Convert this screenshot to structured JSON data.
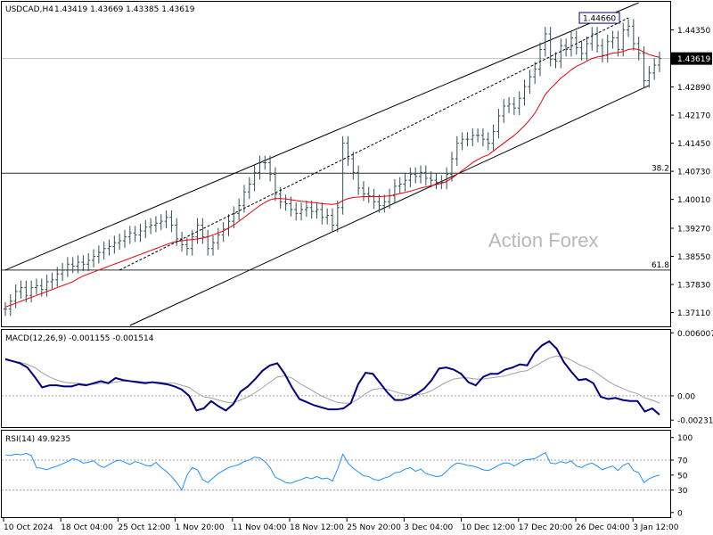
{
  "header": {
    "symbol": "USDCAD,H4",
    "ohlc": "1.43419 1.43669 1.43385 1.43619"
  },
  "watermark": "Action Forex",
  "colors": {
    "price": "#2f4f4f",
    "ma": "#e8000b",
    "macd": "#000080",
    "signal": "#a0a0a0",
    "rsi": "#1e90ff",
    "annotation": "#000080"
  },
  "chart_data": [
    {
      "type": "line",
      "name": "price",
      "ylim": [
        1.3678,
        1.4505
      ],
      "yticks": [
        "1.44350",
        "1.43619",
        "1.42890",
        "1.42170",
        "1.41450",
        "1.40730",
        "1.40010",
        "1.39270",
        "1.38550",
        "1.37830",
        "1.37110"
      ],
      "ytick_values": [
        1.4435,
        1.43619,
        1.4289,
        1.4217,
        1.4145,
        1.4073,
        1.4001,
        1.3927,
        1.3855,
        1.3783,
        1.3711
      ],
      "current_price": 1.43619,
      "current_price_label": "1.43619",
      "high_label": "1.44660",
      "high_value": 1.4466,
      "fib_levels": [
        {
          "label": "38.2",
          "value": 1.4068
        },
        {
          "label": "61.8",
          "value": 1.382
        }
      ],
      "x_labels": [
        "10 Oct 2024",
        "18 Oct 04:00",
        "25 Oct 12:00",
        "1 Nov 20:00",
        "11 Nov 04:00",
        "18 Nov 12:00",
        "25 Nov 20:00",
        "3 Dec 04:00",
        "10 Dec 12:00",
        "17 Dec 20:00",
        "26 Dec 04:00",
        "3 Jan 12:00"
      ],
      "channel": {
        "upper": [
          [
            0,
            1.382
          ],
          [
            122,
            1.4505
          ]
        ],
        "lower": [
          [
            24,
            1.3678
          ],
          [
            124,
            1.4293
          ]
        ]
      },
      "close": [
        1.372,
        1.374,
        1.3765,
        1.3775,
        1.3755,
        1.3775,
        1.378,
        1.377,
        1.379,
        1.3795,
        1.381,
        1.382,
        1.3835,
        1.383,
        1.384,
        1.3835,
        1.3845,
        1.3855,
        1.3865,
        1.3875,
        1.388,
        1.389,
        1.3895,
        1.3905,
        1.3915,
        1.391,
        1.392,
        1.393,
        1.3935,
        1.394,
        1.3945,
        1.3955,
        1.3935,
        1.39,
        1.3885,
        1.3875,
        1.3905,
        1.3935,
        1.3905,
        1.3875,
        1.389,
        1.391,
        1.3925,
        1.3945,
        1.3965,
        1.3985,
        1.402,
        1.404,
        1.407,
        1.4095,
        1.4095,
        1.4065,
        1.4015,
        1.3995,
        1.399,
        1.3975,
        1.3965,
        1.3975,
        1.398,
        1.397,
        1.3975,
        1.3955,
        1.396,
        1.3935,
        1.398,
        1.4145,
        1.4105,
        1.407,
        1.403,
        1.4015,
        1.401,
        1.3995,
        1.3985,
        1.3995,
        1.401,
        1.4035,
        1.404,
        1.405,
        1.4065,
        1.406,
        1.407,
        1.4055,
        1.405,
        1.4045,
        1.4045,
        1.4065,
        1.4105,
        1.4145,
        1.4155,
        1.4155,
        1.4165,
        1.4165,
        1.4155,
        1.4145,
        1.4175,
        1.4215,
        1.424,
        1.4245,
        1.4235,
        1.426,
        1.429,
        1.4315,
        1.4335,
        1.4385,
        1.4425,
        1.436,
        1.4355,
        1.4395,
        1.4385,
        1.4415,
        1.439,
        1.4375,
        1.44,
        1.4425,
        1.4395,
        1.437,
        1.4405,
        1.4415,
        1.4385,
        1.4435,
        1.4445,
        1.44,
        1.4375,
        1.4305,
        1.4325,
        1.4345,
        1.43619
      ],
      "ma": [
        1.3725,
        1.373,
        1.3735,
        1.374,
        1.3745,
        1.375,
        1.3755,
        1.376,
        1.3765,
        1.377,
        1.3775,
        1.378,
        1.3785,
        1.379,
        1.3798,
        1.3805,
        1.381,
        1.3815,
        1.382,
        1.3825,
        1.383,
        1.3835,
        1.384,
        1.3845,
        1.385,
        1.3855,
        1.386,
        1.3865,
        1.387,
        1.3875,
        1.388,
        1.3885,
        1.389,
        1.3893,
        1.3895,
        1.3897,
        1.3898,
        1.39,
        1.3902,
        1.3905,
        1.391,
        1.3915,
        1.392,
        1.3928,
        1.3935,
        1.3945,
        1.3955,
        1.3965,
        1.3975,
        1.3985,
        1.3993,
        1.4,
        1.4003,
        1.4003,
        1.4002,
        1.4,
        1.3998,
        1.3996,
        1.3995,
        1.3993,
        1.3992,
        1.399,
        1.3989,
        1.3988,
        1.399,
        1.3998,
        1.4003,
        1.4006,
        1.4007,
        1.4008,
        1.4008,
        1.4008,
        1.4008,
        1.4009,
        1.401,
        1.4013,
        1.4016,
        1.4019,
        1.4022,
        1.4026,
        1.403,
        1.4033,
        1.4036,
        1.4039,
        1.4042,
        1.4047,
        1.4055,
        1.4065,
        1.4075,
        1.4085,
        1.4095,
        1.4103,
        1.411,
        1.4115,
        1.4125,
        1.4135,
        1.4145,
        1.4155,
        1.4165,
        1.4177,
        1.419,
        1.4205,
        1.4222,
        1.4245,
        1.427,
        1.4285,
        1.4298,
        1.4312,
        1.4322,
        1.4333,
        1.4342,
        1.4348,
        1.4355,
        1.4362,
        1.4366,
        1.4368,
        1.4372,
        1.4376,
        1.4377,
        1.438,
        1.4385,
        1.4387,
        1.4385,
        1.4378,
        1.4372,
        1.4368,
        1.4365
      ]
    },
    {
      "type": "line",
      "name": "MACD",
      "label": "MACD(12,26,9) -0.001155 -0.001514",
      "ylim": [
        -0.0029,
        0.0062
      ],
      "yticks": [
        "0.006007",
        "0.00",
        "-0.002318"
      ],
      "ytick_values": [
        0.006007,
        0.0,
        -0.002318
      ],
      "macd": [
        0.0035,
        0.0033,
        0.0031,
        0.0027,
        0.0018,
        0.0008,
        0.001,
        0.001,
        0.0009,
        0.0009,
        0.0011,
        0.001,
        0.0012,
        0.0014,
        0.0012,
        0.0017,
        0.0015,
        0.0014,
        0.0013,
        0.0012,
        0.0013,
        0.0012,
        0.0011,
        0.0009,
        0.0006,
        0.0,
        -0.0014,
        -0.0012,
        -0.0005,
        -0.001,
        -0.0014,
        -0.0008,
        0.0004,
        0.0009,
        0.0016,
        0.0024,
        0.0029,
        0.0031,
        0.0021,
        0.0008,
        -0.0003,
        -0.0006,
        -0.0009,
        -0.0011,
        -0.0013,
        -0.0013,
        -0.0012,
        -0.0007,
        0.0011,
        0.0022,
        0.0021,
        0.0012,
        0.0003,
        -0.0004,
        -0.0004,
        -0.0002,
        0.0002,
        0.0007,
        0.0015,
        0.0026,
        0.0027,
        0.0025,
        0.0021,
        0.0013,
        0.001,
        0.0018,
        0.0021,
        0.0021,
        0.0025,
        0.0027,
        0.003,
        0.0029,
        0.0041,
        0.0048,
        0.0052,
        0.0045,
        0.0032,
        0.0023,
        0.0015,
        0.0016,
        0.0012,
        -0.0001,
        -0.0003,
        -0.0002,
        -0.0004,
        -0.0005,
        -0.0005,
        -0.0015,
        -0.0012,
        -0.0018
      ],
      "signal": [
        0.0034,
        0.0033,
        0.0032,
        0.003,
        0.0027,
        0.0022,
        0.0018,
        0.0015,
        0.0013,
        0.0012,
        0.0012,
        0.0011,
        0.0011,
        0.0012,
        0.0012,
        0.0013,
        0.0014,
        0.0014,
        0.0014,
        0.0013,
        0.0013,
        0.0013,
        0.0012,
        0.0012,
        0.001,
        0.0008,
        0.0003,
        -0.0001,
        -0.0002,
        -0.0004,
        -0.0006,
        -0.0007,
        -0.0004,
        -0.0001,
        0.0003,
        0.0008,
        0.0013,
        0.0018,
        0.0019,
        0.0017,
        0.0012,
        0.0008,
        0.0004,
        0.0,
        -0.0003,
        -0.0006,
        -0.0007,
        -0.0007,
        -0.0003,
        0.0002,
        0.0006,
        0.0007,
        0.0006,
        0.0004,
        0.0002,
        0.0001,
        0.0001,
        0.0002,
        0.0005,
        0.0009,
        0.0013,
        0.0016,
        0.0017,
        0.0017,
        0.0016,
        0.0016,
        0.0017,
        0.0018,
        0.0019,
        0.0021,
        0.0023,
        0.0024,
        0.0028,
        0.0032,
        0.0036,
        0.0038,
        0.0037,
        0.0034,
        0.003,
        0.0027,
        0.0024,
        0.0019,
        0.0014,
        0.001,
        0.0007,
        0.0004,
        0.0002,
        -0.0002,
        -0.0004,
        -0.0007
      ]
    },
    {
      "type": "line",
      "name": "RSI",
      "label": "RSI(14) 49.9235",
      "ylim": [
        -5,
        108
      ],
      "yticks": [
        "100",
        "70",
        "50",
        "30",
        "0"
      ],
      "ytick_values": [
        100,
        70,
        50,
        30,
        0
      ],
      "levels": [
        70,
        30
      ],
      "rsi": [
        77,
        76,
        78,
        77,
        79,
        76,
        60,
        59,
        57,
        60,
        62,
        65,
        68,
        72,
        70,
        66,
        67,
        69,
        63,
        60,
        64,
        68,
        70,
        67,
        64,
        68,
        66,
        63,
        62,
        67,
        60,
        55,
        48,
        40,
        30,
        50,
        60,
        57,
        44,
        40,
        46,
        52,
        56,
        60,
        62,
        64,
        68,
        70,
        74,
        73,
        68,
        60,
        47,
        44,
        40,
        39,
        42,
        44,
        47,
        45,
        48,
        45,
        46,
        42,
        58,
        78,
        66,
        59,
        54,
        49,
        48,
        44,
        43,
        46,
        48,
        53,
        54,
        58,
        60,
        55,
        58,
        52,
        50,
        48,
        49,
        55,
        62,
        66,
        65,
        63,
        62,
        60,
        57,
        56,
        59,
        63,
        66,
        66,
        62,
        66,
        70,
        71,
        72,
        76,
        80,
        66,
        65,
        68,
        66,
        69,
        62,
        60,
        64,
        66,
        62,
        57,
        60,
        62,
        56,
        63,
        66,
        56,
        53,
        40,
        45,
        48,
        50
      ]
    }
  ]
}
